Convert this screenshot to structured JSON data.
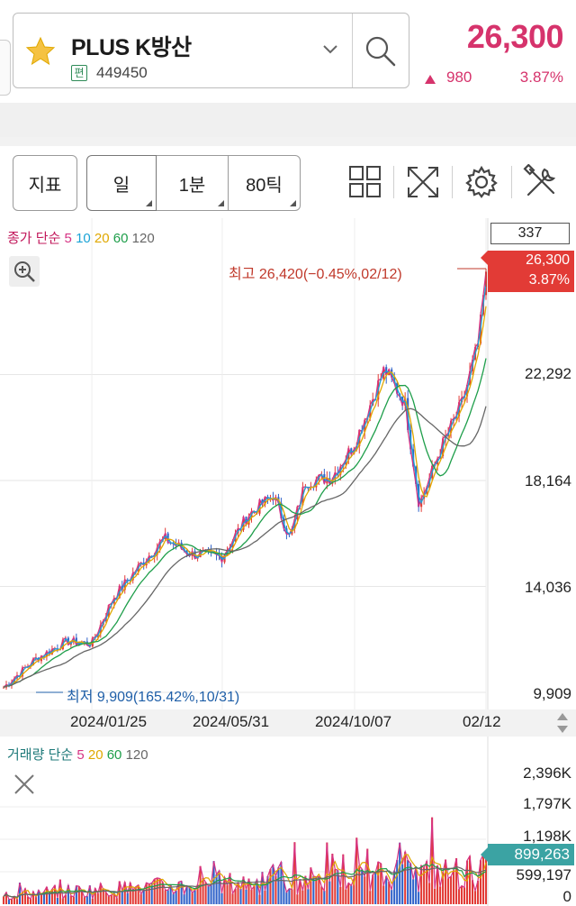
{
  "stock": {
    "name": "PLUS K방산",
    "badge": "편",
    "code": "449450",
    "price": "26,300",
    "change_abs": "980",
    "change_pct": "3.87%"
  },
  "toolbar": {
    "indicator_label": "지표",
    "day_label": "일",
    "minute_label": "1분",
    "tick_label": "80틱"
  },
  "legend": {
    "prefix": "종가 단순",
    "periods": [
      {
        "label": "5",
        "color": "#d63384"
      },
      {
        "label": "10",
        "color": "#1aa3d6"
      },
      {
        "label": "20",
        "color": "#e0a800"
      },
      {
        "label": "60",
        "color": "#1e9e4a"
      },
      {
        "label": "120",
        "color": "#666666"
      }
    ]
  },
  "volume_legend": {
    "prefix": "거래량 단순",
    "periods": [
      {
        "label": "5",
        "color": "#d63384"
      },
      {
        "label": "20",
        "color": "#e0a800"
      },
      {
        "label": "60",
        "color": "#1e9e4a"
      },
      {
        "label": "120",
        "color": "#666666"
      }
    ]
  },
  "chart": {
    "axis_top_box": "337",
    "current_price": "26,300",
    "current_pct": "3.87%",
    "y_ticks": [
      "22,292",
      "18,164",
      "14,036",
      "9,909"
    ],
    "high_annotation": "최고 26,420(−0.45%,02/12)",
    "low_annotation": "최저 9,909(165.42%,10/31)",
    "x_ticks": [
      "2024/01/25",
      "2024/05/31",
      "2024/10/07",
      "02/12"
    ]
  },
  "volume": {
    "y_ticks": [
      "2,396K",
      "1,797K",
      "1,198K",
      "599,197",
      "0"
    ],
    "current_volume": "899,263"
  },
  "colors": {
    "up": "#d6336c",
    "candle_up": "#e23b36",
    "candle_down": "#2f62c9",
    "volume_tag": "#3ba3a3"
  },
  "chart_data": {
    "type": "candlestick",
    "ylim": [
      9909,
      26420
    ],
    "y_axis_ticks": [
      22292,
      18164,
      14036,
      9909
    ],
    "x_axis_ticks": [
      "2024/01/25",
      "2024/05/31",
      "2024/10/07",
      "02/12"
    ],
    "high": 26420,
    "low": 9909,
    "last_close": 26300,
    "close_trend": [
      {
        "x": "2023/10/31",
        "y": 10100
      },
      {
        "x": "2023/12/01",
        "y": 11200
      },
      {
        "x": "2024/01/01",
        "y": 11900
      },
      {
        "x": "2024/01/25",
        "y": 11800
      },
      {
        "x": "2024/02/15",
        "y": 13600
      },
      {
        "x": "2024/03/15",
        "y": 15000
      },
      {
        "x": "2024/04/05",
        "y": 15900
      },
      {
        "x": "2024/05/01",
        "y": 15300
      },
      {
        "x": "2024/05/31",
        "y": 15200
      },
      {
        "x": "2024/06/25",
        "y": 16800
      },
      {
        "x": "2024/07/20",
        "y": 17600
      },
      {
        "x": "2024/08/05",
        "y": 15900
      },
      {
        "x": "2024/08/20",
        "y": 18100
      },
      {
        "x": "2024/09/15",
        "y": 18300
      },
      {
        "x": "2024/10/07",
        "y": 19600
      },
      {
        "x": "2024/11/05",
        "y": 22500
      },
      {
        "x": "2024/11/25",
        "y": 21200
      },
      {
        "x": "2024/12/09",
        "y": 17200
      },
      {
        "x": "2024/12/30",
        "y": 19400
      },
      {
        "x": "2025/01/20",
        "y": 21200
      },
      {
        "x": "2025/02/05",
        "y": 23600
      },
      {
        "x": "2025/02/12",
        "y": 26300
      }
    ],
    "volume_ylim": [
      0,
      2396000
    ],
    "volume_last": 899263
  }
}
